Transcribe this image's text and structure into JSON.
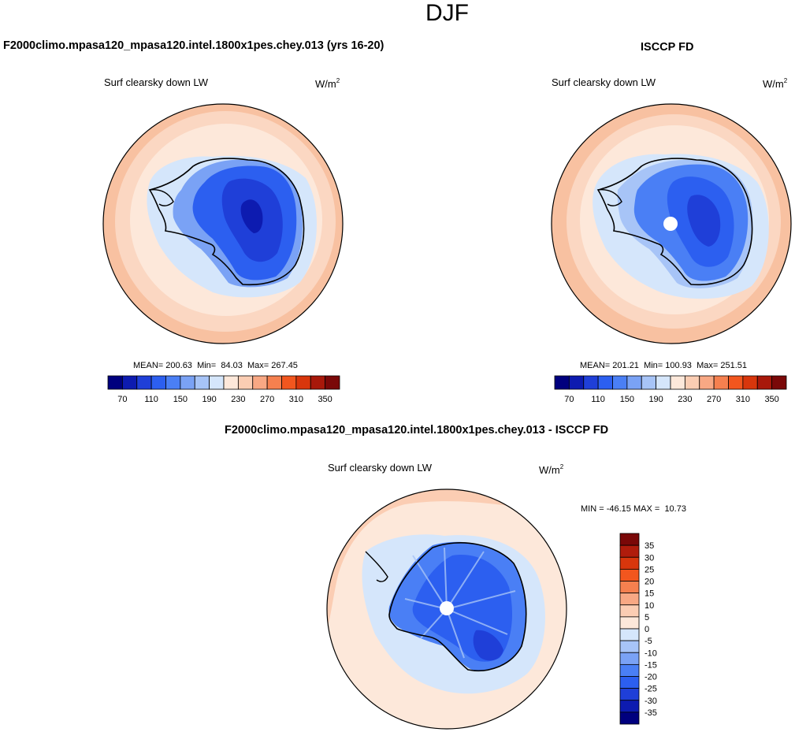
{
  "figure": {
    "season": "DJF",
    "model_title": "F2000climo.mpasa120_mpasa120.intel.1800x1pes.chey.013 (yrs 16-20)",
    "obs_title": "ISCCP FD",
    "diff_title": "F2000climo.mpasa120_mpasa120.intel.1800x1pes.chey.013 - ISCCP FD"
  },
  "panels": {
    "model": {
      "variable": "Surf clearsky down LW",
      "units_base": "W/m",
      "units_exp": "2",
      "mean_label": "MEAN=",
      "mean": "200.63",
      "min_label": "Min=",
      "min": "84.03",
      "max_label": "Max=",
      "max": "267.45"
    },
    "obs": {
      "variable": "Surf clearsky down LW",
      "units_base": "W/m",
      "units_exp": "2",
      "mean_label": "MEAN=",
      "mean": "201.21",
      "min_label": "Min=",
      "min": "100.93",
      "max_label": "Max=",
      "max": "251.51"
    },
    "diff": {
      "variable": "Surf clearsky down LW",
      "units_base": "W/m",
      "units_exp": "2",
      "min_label": "MIN =",
      "min": "-46.15",
      "max_label": "MAX =",
      "max": "10.73"
    }
  },
  "colorbars": {
    "abs": {
      "colors": [
        "#00007e",
        "#0d1bb0",
        "#1f3fd8",
        "#2c5ff0",
        "#4a7ff5",
        "#7aa2f5",
        "#a7c4f7",
        "#d5e6fb",
        "#fde8da",
        "#fbcdb3",
        "#f8a884",
        "#f5804f",
        "#f2561e",
        "#d8360c",
        "#a8180a",
        "#7a0808"
      ],
      "labels": [
        "70",
        "110",
        "150",
        "190",
        "230",
        "270",
        "310",
        "350"
      ]
    },
    "diff": {
      "colors": [
        "#7a0808",
        "#b01c0c",
        "#d8360c",
        "#f2561e",
        "#f5804f",
        "#f8a884",
        "#fbcdb3",
        "#fde8da",
        "#d5e6fb",
        "#a7c4f7",
        "#7aa2f5",
        "#4a7ff5",
        "#2c5ff0",
        "#1f3fd8",
        "#0d1bb0",
        "#00007e"
      ],
      "labels": [
        "35",
        "30",
        "25",
        "20",
        "15",
        "10",
        "5",
        "0",
        "-5",
        "-10",
        "-15",
        "-20",
        "-25",
        "-30",
        "-35"
      ]
    }
  },
  "map_colors": {
    "outer_ring_abs": "#f6b894",
    "ocean_abs": "#fbd7c2",
    "inner_abs": "#fde8da",
    "sea_ice_abs": "#d5e6fb",
    "coast_ring_abs": "#7aa2f5",
    "interior1_abs": "#2c5ff0",
    "interior2_abs": "#1f3fd8",
    "interior3_abs": "#0d1bb0",
    "ocean_diff": "#fde8da",
    "ocean_diff_edge": "#fbcdb3",
    "ice_diff": "#d5e6fb",
    "land_diff1": "#4a7ff5",
    "land_diff2": "#2c5ff0",
    "land_diff3": "#1f3fd8"
  }
}
